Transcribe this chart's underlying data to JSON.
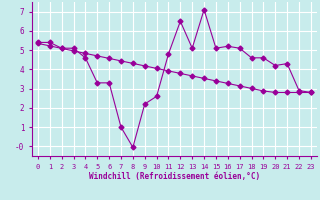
{
  "xlabel": "Windchill (Refroidissement éolien,°C)",
  "ylabel": "",
  "bg_color": "#c8ecec",
  "line_color": "#990099",
  "grid_color": "#ffffff",
  "x_data": [
    0,
    1,
    2,
    3,
    4,
    5,
    6,
    7,
    8,
    9,
    10,
    11,
    12,
    13,
    14,
    15,
    16,
    17,
    18,
    19,
    20,
    21,
    22,
    23
  ],
  "y_actual": [
    5.4,
    5.4,
    5.1,
    5.1,
    4.6,
    3.3,
    3.3,
    1.0,
    -0.05,
    2.2,
    2.6,
    4.8,
    6.5,
    5.1,
    7.1,
    5.1,
    5.2,
    5.1,
    4.6,
    4.6,
    4.2,
    4.3,
    2.9,
    2.8
  ],
  "y_trend": [
    5.35,
    5.22,
    5.09,
    4.96,
    4.83,
    4.7,
    4.57,
    4.44,
    4.31,
    4.18,
    4.05,
    3.92,
    3.79,
    3.66,
    3.53,
    3.4,
    3.27,
    3.14,
    3.01,
    2.88,
    2.8,
    2.8,
    2.8,
    2.8
  ],
  "ylim": [
    -0.5,
    7.5
  ],
  "xlim": [
    -0.5,
    23.5
  ],
  "yticks": [
    0,
    1,
    2,
    3,
    4,
    5,
    6,
    7
  ],
  "xticks": [
    0,
    1,
    2,
    3,
    4,
    5,
    6,
    7,
    8,
    9,
    10,
    11,
    12,
    13,
    14,
    15,
    16,
    17,
    18,
    19,
    20,
    21,
    22,
    23
  ],
  "marker_size": 2.5,
  "line_width": 0.8
}
